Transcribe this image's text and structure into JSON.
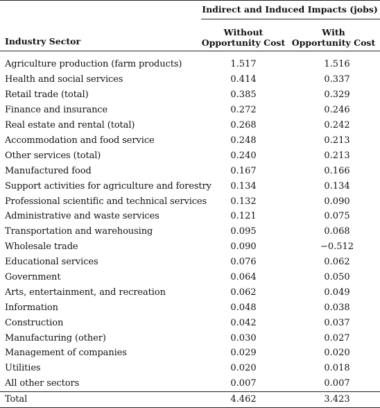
{
  "table": {
    "group_header": "Indirect and Induced Impacts (jobs)",
    "columns": {
      "sector": "Industry Sector",
      "without": [
        "Without",
        "Opportunity Cost"
      ],
      "with": [
        "With",
        "Opportunity Cost"
      ]
    },
    "rows": [
      {
        "sector": "Agriculture production (farm products)",
        "without": "1.517",
        "with": "1.516"
      },
      {
        "sector": "Health and social services",
        "without": "0.414",
        "with": "0.337"
      },
      {
        "sector": "Retail trade (total)",
        "without": "0.385",
        "with": "0.329"
      },
      {
        "sector": "Finance and insurance",
        "without": "0.272",
        "with": "0.246"
      },
      {
        "sector": "Real estate and rental (total)",
        "without": "0.268",
        "with": "0.242"
      },
      {
        "sector": "Accommodation and food service",
        "without": "0.248",
        "with": "0.213"
      },
      {
        "sector": "Other services (total)",
        "without": "0.240",
        "with": "0.213"
      },
      {
        "sector": "Manufactured food",
        "without": "0.167",
        "with": "0.166"
      },
      {
        "sector": "Support activities for agriculture and forestry",
        "without": "0.134",
        "with": "0.134"
      },
      {
        "sector": "Professional scientific and technical services",
        "without": "0.132",
        "with": "0.090"
      },
      {
        "sector": "Administrative and waste services",
        "without": "0.121",
        "with": "0.075"
      },
      {
        "sector": "Transportation and warehousing",
        "without": "0.095",
        "with": "0.068"
      },
      {
        "sector": "Wholesale trade",
        "without": "0.090",
        "with": "−0.512"
      },
      {
        "sector": "Educational services",
        "without": "0.076",
        "with": "0.062"
      },
      {
        "sector": "Government",
        "without": "0.064",
        "with": "0.050"
      },
      {
        "sector": "Arts, entertainment, and recreation",
        "without": "0.062",
        "with": "0.049"
      },
      {
        "sector": "Information",
        "without": "0.048",
        "with": "0.038"
      },
      {
        "sector": "Construction",
        "without": "0.042",
        "with": "0.037"
      },
      {
        "sector": "Manufacturing (other)",
        "without": "0.030",
        "with": "0.027"
      },
      {
        "sector": "Management of companies",
        "without": "0.029",
        "with": "0.020"
      },
      {
        "sector": "Utilities",
        "without": "0.020",
        "with": "0.018"
      },
      {
        "sector": "All other sectors",
        "without": "0.007",
        "with": "0.007"
      }
    ],
    "total": {
      "sector": "Total",
      "without": "4.462",
      "with": "3.423"
    }
  }
}
